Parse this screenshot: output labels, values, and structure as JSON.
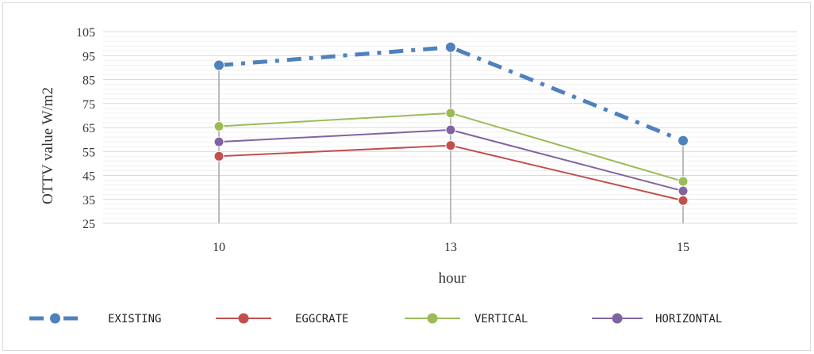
{
  "chart_data": {
    "type": "line",
    "title": "",
    "xlabel": "hour",
    "ylabel": "OTTV value W/m2",
    "categories": [
      "10",
      "13",
      "15"
    ],
    "ylim": [
      25,
      105
    ],
    "yticks": [
      25,
      35,
      45,
      55,
      65,
      75,
      85,
      95,
      105
    ],
    "grid": true,
    "drop_lines": true,
    "legend_position": "bottom",
    "series": [
      {
        "name": "EXISTING",
        "values": [
          91,
          98.5,
          59.5
        ],
        "color": "#4f81bd",
        "line_style": "dash-dot"
      },
      {
        "name": "EGGCRATE",
        "values": [
          53,
          57.5,
          34.5
        ],
        "color": "#c0504d",
        "line_style": "solid"
      },
      {
        "name": "VERTICAL",
        "values": [
          65.5,
          71,
          42.5
        ],
        "color": "#9bbb59",
        "line_style": "solid"
      },
      {
        "name": "HORIZONTAL",
        "values": [
          59,
          64,
          38.5
        ],
        "color": "#8064a2",
        "line_style": "solid"
      }
    ]
  }
}
